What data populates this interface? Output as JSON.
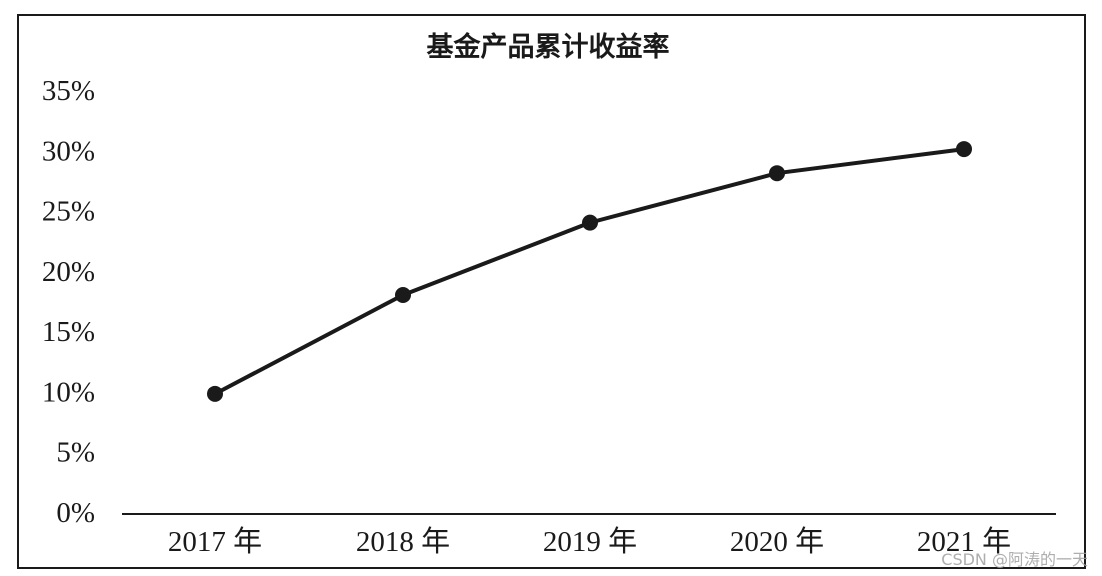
{
  "watermark": "CSDN @阿涛的一天",
  "colors": {
    "line": "#1a1a1a",
    "marker": "#1a1a1a",
    "axis": "#1a1a1a",
    "background": "#ffffff"
  },
  "chart_data": {
    "type": "line",
    "title": "基金产品累计收益率",
    "xlabel": "",
    "ylabel": "",
    "categories": [
      "2017 年",
      "2018 年",
      "2019 年",
      "2020 年",
      "2021 年"
    ],
    "series": [
      {
        "values": [
          9.8,
          18.0,
          24.0,
          28.1,
          30.1
        ]
      }
    ],
    "ylim": [
      0,
      35
    ],
    "yticks": [
      0,
      5,
      10,
      15,
      20,
      25,
      30,
      35
    ],
    "ytick_labels": [
      "0%",
      "5%",
      "10%",
      "15%",
      "20%",
      "25%",
      "30%",
      "35%"
    ],
    "grid": false,
    "legend": "none"
  }
}
